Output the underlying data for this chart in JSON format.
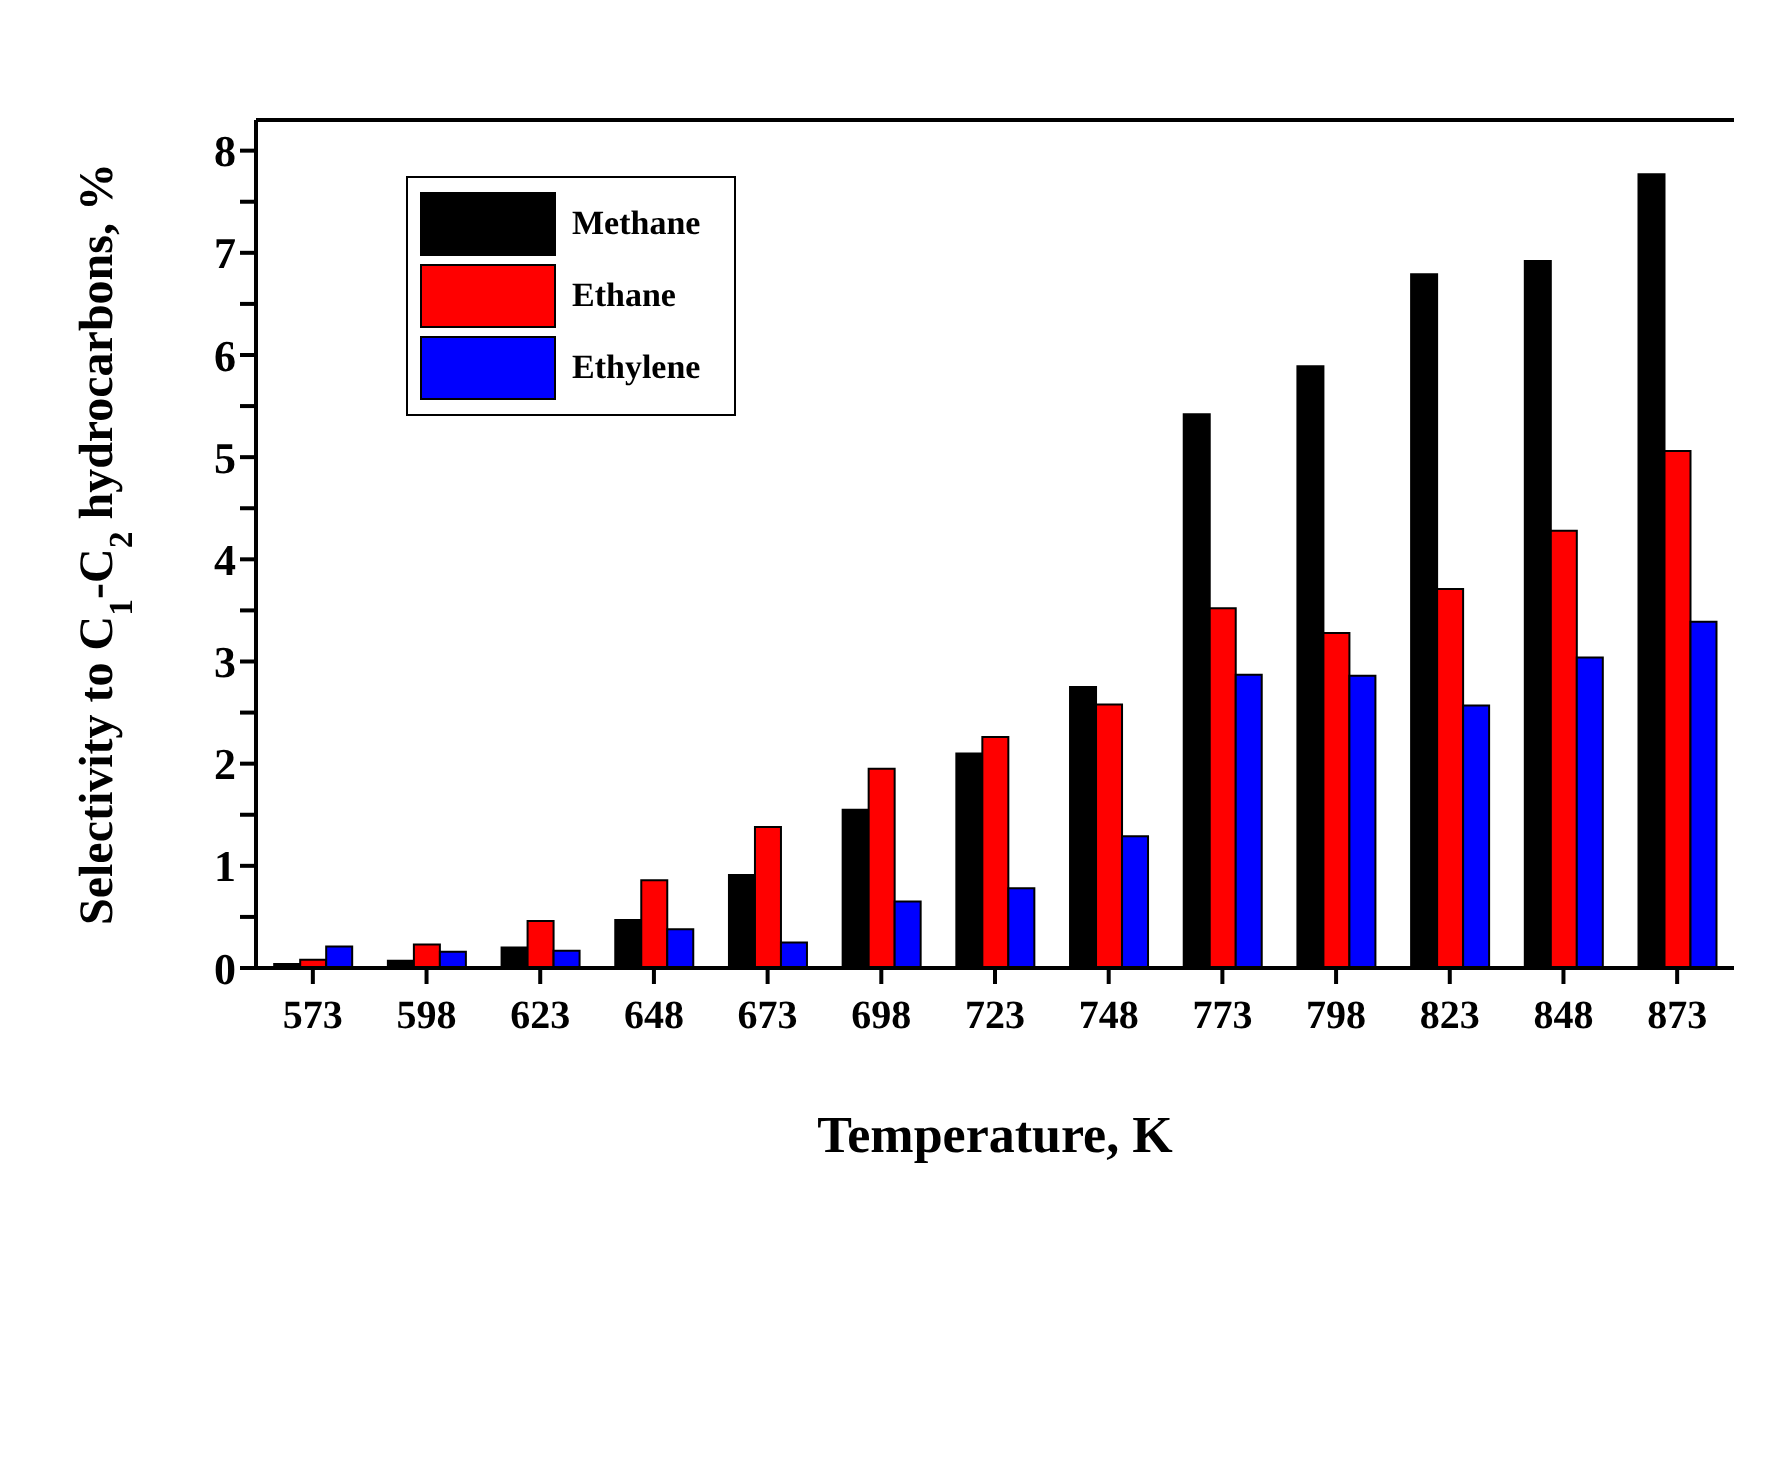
{
  "chart_data": {
    "type": "bar",
    "xlabel": "Temperature, K",
    "ylabel": "Selectivity to C$_{1}$-C$_{2}$ hydrocarbons, %",
    "categories": [
      "573",
      "598",
      "623",
      "648",
      "673",
      "698",
      "723",
      "748",
      "773",
      "798",
      "823",
      "848",
      "873"
    ],
    "series": [
      {
        "name": "Methane",
        "color": "#000000",
        "values": [
          0.04,
          0.07,
          0.2,
          0.47,
          0.91,
          1.55,
          2.1,
          2.75,
          5.42,
          5.89,
          6.79,
          6.92,
          7.77
        ]
      },
      {
        "name": "Ethane",
        "color": "#ff0000",
        "values": [
          0.08,
          0.23,
          0.46,
          0.86,
          1.38,
          1.95,
          2.26,
          2.58,
          3.52,
          3.28,
          3.71,
          4.28,
          5.06
        ]
      },
      {
        "name": "Ethylene",
        "color": "#0000ff",
        "values": [
          0.21,
          0.16,
          0.17,
          0.38,
          0.25,
          0.65,
          0.78,
          1.29,
          2.87,
          2.86,
          2.57,
          3.04,
          3.39
        ]
      }
    ],
    "ylim": [
      0,
      8.3
    ],
    "yticks": [
      0,
      {
        "value": 0.5,
        "label": null
      },
      1,
      {
        "value": 1.5,
        "label": null
      },
      2,
      {
        "value": 2.5,
        "label": null
      },
      3,
      {
        "value": 3.5,
        "label": null
      },
      4,
      {
        "value": 4.5,
        "label": null
      },
      5,
      {
        "value": 5.5,
        "label": null
      },
      6,
      {
        "value": 6.5,
        "label": null
      },
      7,
      {
        "value": 7.5,
        "label": null
      },
      8
    ],
    "legend": "top left"
  }
}
